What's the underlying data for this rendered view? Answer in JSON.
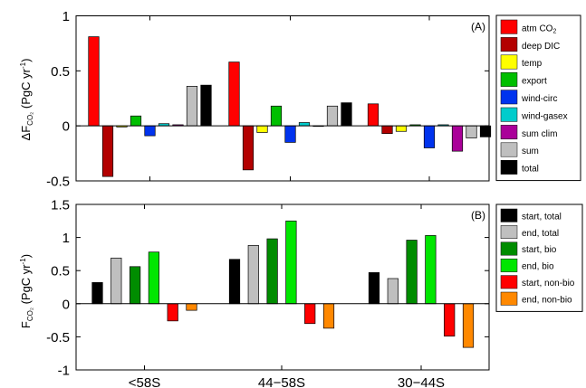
{
  "chart_data": [
    {
      "type": "bar",
      "panel_label": "(A)",
      "ylabel": {
        "main": "ΔF",
        "sub": "CO₂",
        "unit": " (PgC yr",
        "sup": "-1",
        "close": ")"
      },
      "ylim": [
        -0.5,
        1
      ],
      "yticks": [
        {
          "value": -0.5,
          "label": "-0.5"
        },
        {
          "value": 0,
          "label": "0"
        },
        {
          "value": 0.5,
          "label": "0.5"
        },
        {
          "value": 1,
          "label": "1"
        }
      ],
      "categories": [
        "<58S",
        "44−58S",
        "30−44S"
      ],
      "series": [
        {
          "name": "atm CO",
          "name_sub": "2",
          "color": "#ff0000",
          "values": [
            0.81,
            0.58,
            0.2
          ]
        },
        {
          "name": "deep DIC",
          "color": "#b30000",
          "values": [
            -0.46,
            -0.4,
            -0.07
          ]
        },
        {
          "name": "temp",
          "color": "#ffff00",
          "values": [
            -0.01,
            -0.06,
            -0.05
          ]
        },
        {
          "name": "export",
          "color": "#00bf00",
          "values": [
            0.09,
            0.18,
            0.01
          ]
        },
        {
          "name": "wind-circ",
          "color": "#0033ee",
          "values": [
            -0.09,
            -0.15,
            -0.2
          ]
        },
        {
          "name": "wind-gasex",
          "color": "#00cccc",
          "values": [
            0.02,
            0.03,
            0.01
          ]
        },
        {
          "name": "sum clim",
          "color": "#aa0099",
          "values": [
            0.01,
            0.0,
            -0.23
          ]
        },
        {
          "name": "sum",
          "color": "#bfbfbf",
          "values": [
            0.36,
            0.18,
            -0.11
          ]
        },
        {
          "name": "total",
          "color": "#000000",
          "values": [
            0.37,
            0.21,
            -0.1
          ]
        }
      ]
    },
    {
      "type": "bar",
      "panel_label": "(B)",
      "ylabel": {
        "main": "F",
        "sub": "CO₂",
        "unit": " (PgC yr",
        "sup": "-1",
        "close": ")"
      },
      "ylim": [
        -1,
        1.5
      ],
      "yticks": [
        {
          "value": -1,
          "label": "-1"
        },
        {
          "value": -0.5,
          "label": "-0.5"
        },
        {
          "value": 0,
          "label": "0"
        },
        {
          "value": 0.5,
          "label": "0.5"
        },
        {
          "value": 1,
          "label": "1"
        },
        {
          "value": 1.5,
          "label": "1.5"
        }
      ],
      "categories": [
        "<58S",
        "44−58S",
        "30−44S"
      ],
      "series": [
        {
          "name": "start, total",
          "color": "#000000",
          "values": [
            0.32,
            0.67,
            0.47
          ]
        },
        {
          "name": "end, total",
          "color": "#bfbfbf",
          "values": [
            0.69,
            0.88,
            0.38
          ]
        },
        {
          "name": "start, bio",
          "color": "#008c00",
          "values": [
            0.56,
            0.98,
            0.96
          ]
        },
        {
          "name": "end, bio",
          "color": "#00e600",
          "values": [
            0.78,
            1.25,
            1.03
          ]
        },
        {
          "name": "start, non-bio",
          "color": "#ff0000",
          "values": [
            -0.26,
            -0.3,
            -0.49
          ]
        },
        {
          "name": "end, non-bio",
          "color": "#ff8800",
          "values": [
            -0.1,
            -0.37,
            -0.66
          ]
        }
      ]
    }
  ]
}
